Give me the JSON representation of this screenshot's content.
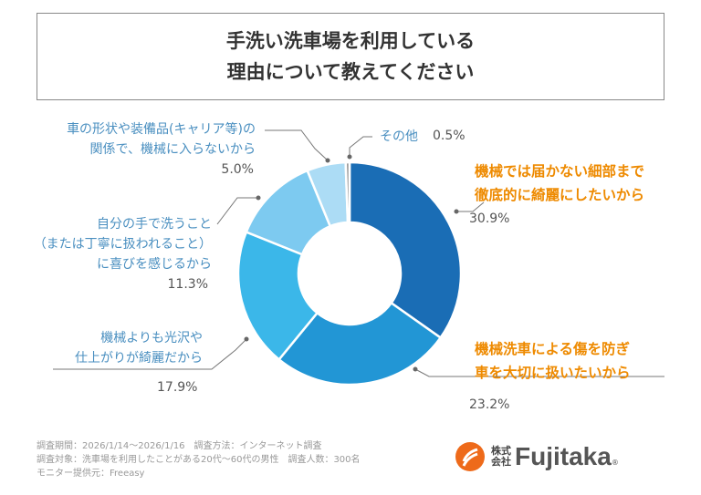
{
  "title": [
    "手洗い洗車場を利用している",
    "理由について教えてください"
  ],
  "chart_data": {
    "type": "pie",
    "title": "手洗い洗車場を利用している理由について教えてください",
    "slices": [
      {
        "label": "機械では届かない細部まで徹底的に綺麗にしたいから",
        "value": 30.9,
        "pct": "30.9%",
        "color": "#1a6db5"
      },
      {
        "label": "機械洗車による傷を防ぎ車を大切に扱いたいから",
        "value": 23.2,
        "pct": "23.2%",
        "color": "#2296d5"
      },
      {
        "label": "機械よりも光沢や仕上がりが綺麗だから",
        "value": 17.9,
        "pct": "17.9%",
        "color": "#3bb7e9"
      },
      {
        "label": "自分の手で洗うこと（または丁寧に扱われること）に喜びを感じるから",
        "value": 11.3,
        "pct": "11.3%",
        "color": "#7dcaf0"
      },
      {
        "label": "車の形状や装備品(キャリア等)の関係で、機械に入らないから",
        "value": 5.0,
        "pct": "5.0%",
        "color": "#acdcf5"
      },
      {
        "label": "その他",
        "value": 0.5,
        "pct": "0.5%",
        "color": "#9a9a9a"
      }
    ]
  },
  "labels": {
    "s0": [
      "機械では届かない細部まで",
      "徹底的に綺麗にしたいから"
    ],
    "s1": [
      "機械洗車による傷を防ぎ",
      "車を大切に扱いたいから"
    ],
    "s2": [
      "機械よりも光沢や",
      "仕上がりが綺麗だから"
    ],
    "s3": [
      "自分の手で洗うこと",
      "（または丁寧に扱われること）",
      "に喜びを感じるから"
    ],
    "s4": [
      "車の形状や装備品(キャリア等)の",
      "関係で、機械に入らないから"
    ],
    "s5": "その他"
  },
  "footer": [
    "調査期間：2026/1/14～2026/1/16　調査方法：インターネット調査",
    "調査対象：洗車場を利用したことがある20代～60代の男性　調査人数：300名",
    "モニター提供元：Freeasy"
  ],
  "logo": {
    "kk1": "株式",
    "kk2": "会社",
    "brand": "Fujitaka",
    "reg": "®"
  }
}
